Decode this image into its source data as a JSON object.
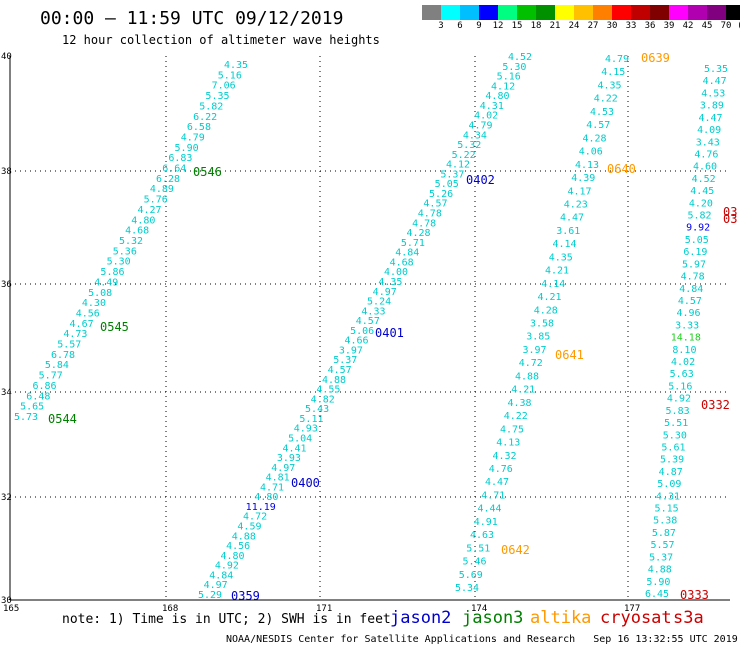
{
  "title": "00:00 – 11:59 UTC 09/12/2019",
  "subtitle": "12 hour collection of altimeter wave heights",
  "legend": {
    "unit": "(ft)",
    "colors": [
      "#808080",
      "#00ffff",
      "#00bfff",
      "#0000ff",
      "#00ff80",
      "#00c000",
      "#009000",
      "#ffff00",
      "#ffc000",
      "#ff8000",
      "#ff0000",
      "#c00000",
      "#800000",
      "#ff00ff",
      "#b000b0",
      "#800080",
      "#000000"
    ],
    "labels": [
      "3",
      "6",
      "9",
      "12",
      "15",
      "18",
      "21",
      "24",
      "27",
      "30",
      "33",
      "36",
      "39",
      "42",
      "45",
      "70"
    ]
  },
  "map": {
    "x_ticks": [
      "165",
      "168",
      "171",
      "174",
      "177"
    ],
    "y_ticks": [
      "40",
      "38",
      "36",
      "34",
      "32",
      "30"
    ],
    "grid": "dotted"
  },
  "tracks": [
    {
      "values": [
        "4.35",
        "5.16",
        "7.06",
        "5.35",
        "5.82",
        "6.22",
        "6.58",
        "4.79",
        "5.90",
        "6.83",
        "6.64",
        "6.28",
        "4.89",
        "5.76",
        "4.27",
        "4.80",
        "4.68",
        "5.32",
        "5.36",
        "5.30",
        "5.86",
        "4.49",
        "5.08",
        "4.30",
        "4.56",
        "4.67",
        "4.73",
        "5.57",
        "6.78",
        "5.84",
        "5.77",
        "6.86",
        "6.48",
        "5.65",
        "5.73"
      ],
      "labels": [
        "0546",
        "0545",
        "0544"
      ],
      "satellite": "jason3"
    },
    {
      "values": [
        "4.52",
        "5.30",
        "5.16",
        "4.12",
        "4.80",
        "4.31",
        "4.02",
        "4.79",
        "4.34",
        "5.32",
        "5.22",
        "4.12",
        "5.37",
        "5.05",
        "5.26",
        "4.57",
        "4.78",
        "4.78",
        "4.28",
        "5.71",
        "4.84",
        "4.68",
        "4.00",
        "4.35",
        "4.97",
        "5.24",
        "4.33",
        "4.57",
        "5.06",
        "4.66",
        "3.97",
        "5.37",
        "4.57",
        "4.88",
        "4.55",
        "4.82",
        "5.43",
        "5.11",
        "4.93",
        "5.04",
        "4.41",
        "3.93",
        "4.97",
        "4.81",
        "4.71",
        "4.80",
        "11.19",
        "4.72",
        "4.59",
        "4.88",
        "4.56",
        "4.80",
        "4.92",
        "4.84",
        "4.97",
        "5.29"
      ],
      "labels": [
        "0402",
        "0401",
        "0400",
        "0359"
      ],
      "satellite": "jason2"
    },
    {
      "values": [
        "4.79",
        "4.15",
        "4.35",
        "4.22",
        "4.53",
        "4.57",
        "4.28",
        "4.06",
        "4.13",
        "4.39",
        "4.17",
        "4.23",
        "4.47",
        "3.61",
        "4.14",
        "4.35",
        "4.21",
        "4.14",
        "4.21",
        "4.28",
        "3.58",
        "3.85",
        "3.97",
        "4.72",
        "4.88",
        "4.21",
        "4.38",
        "4.22",
        "4.75",
        "4.13",
        "4.32",
        "4.76",
        "4.47",
        "4.71",
        "4.44",
        "4.91",
        "4.63",
        "5.51",
        "5.46",
        "5.69",
        "5.34"
      ],
      "labels": [
        "0639",
        "0640",
        "0641",
        "0642"
      ],
      "satellite": "altika"
    },
    {
      "values": [
        "5.35",
        "4.47",
        "4.53",
        "3.89",
        "4.47",
        "4.09",
        "3.43",
        "4.76",
        "4.60",
        "4.52",
        "4.45",
        "4.20",
        "5.82",
        "9.92",
        "5.05",
        "6.19",
        "5.97",
        "4.78",
        "4.84",
        "4.57",
        "4.96",
        "3.33",
        "14.18",
        "8.10",
        "4.02",
        "5.63",
        "5.16",
        "4.92",
        "5.83",
        "5.51",
        "5.30",
        "5.61",
        "5.39",
        "4.87",
        "5.09",
        "4.31",
        "5.15",
        "5.38",
        "5.87",
        "5.57",
        "5.37",
        "4.88",
        "5.90",
        "6.45"
      ],
      "labels": [
        "03",
        "03",
        "0332",
        "0333"
      ],
      "satellite": "cryosat"
    }
  ],
  "satellites": [
    {
      "name": "jason2",
      "color": "#0000cc"
    },
    {
      "name": "jason3",
      "color": "#008000"
    },
    {
      "name": "altika",
      "color": "#ff9900"
    },
    {
      "name": "cryosat",
      "color": "#cc0000"
    },
    {
      "name": "s3a",
      "color": "#cc0000"
    }
  ],
  "note": "note: 1) Time is in UTC; 2) SWH is in feet",
  "credit": "NOAA/NESDIS Center for Satellite Applications and Research   Sep 16 13:32:55 UTC 2019"
}
